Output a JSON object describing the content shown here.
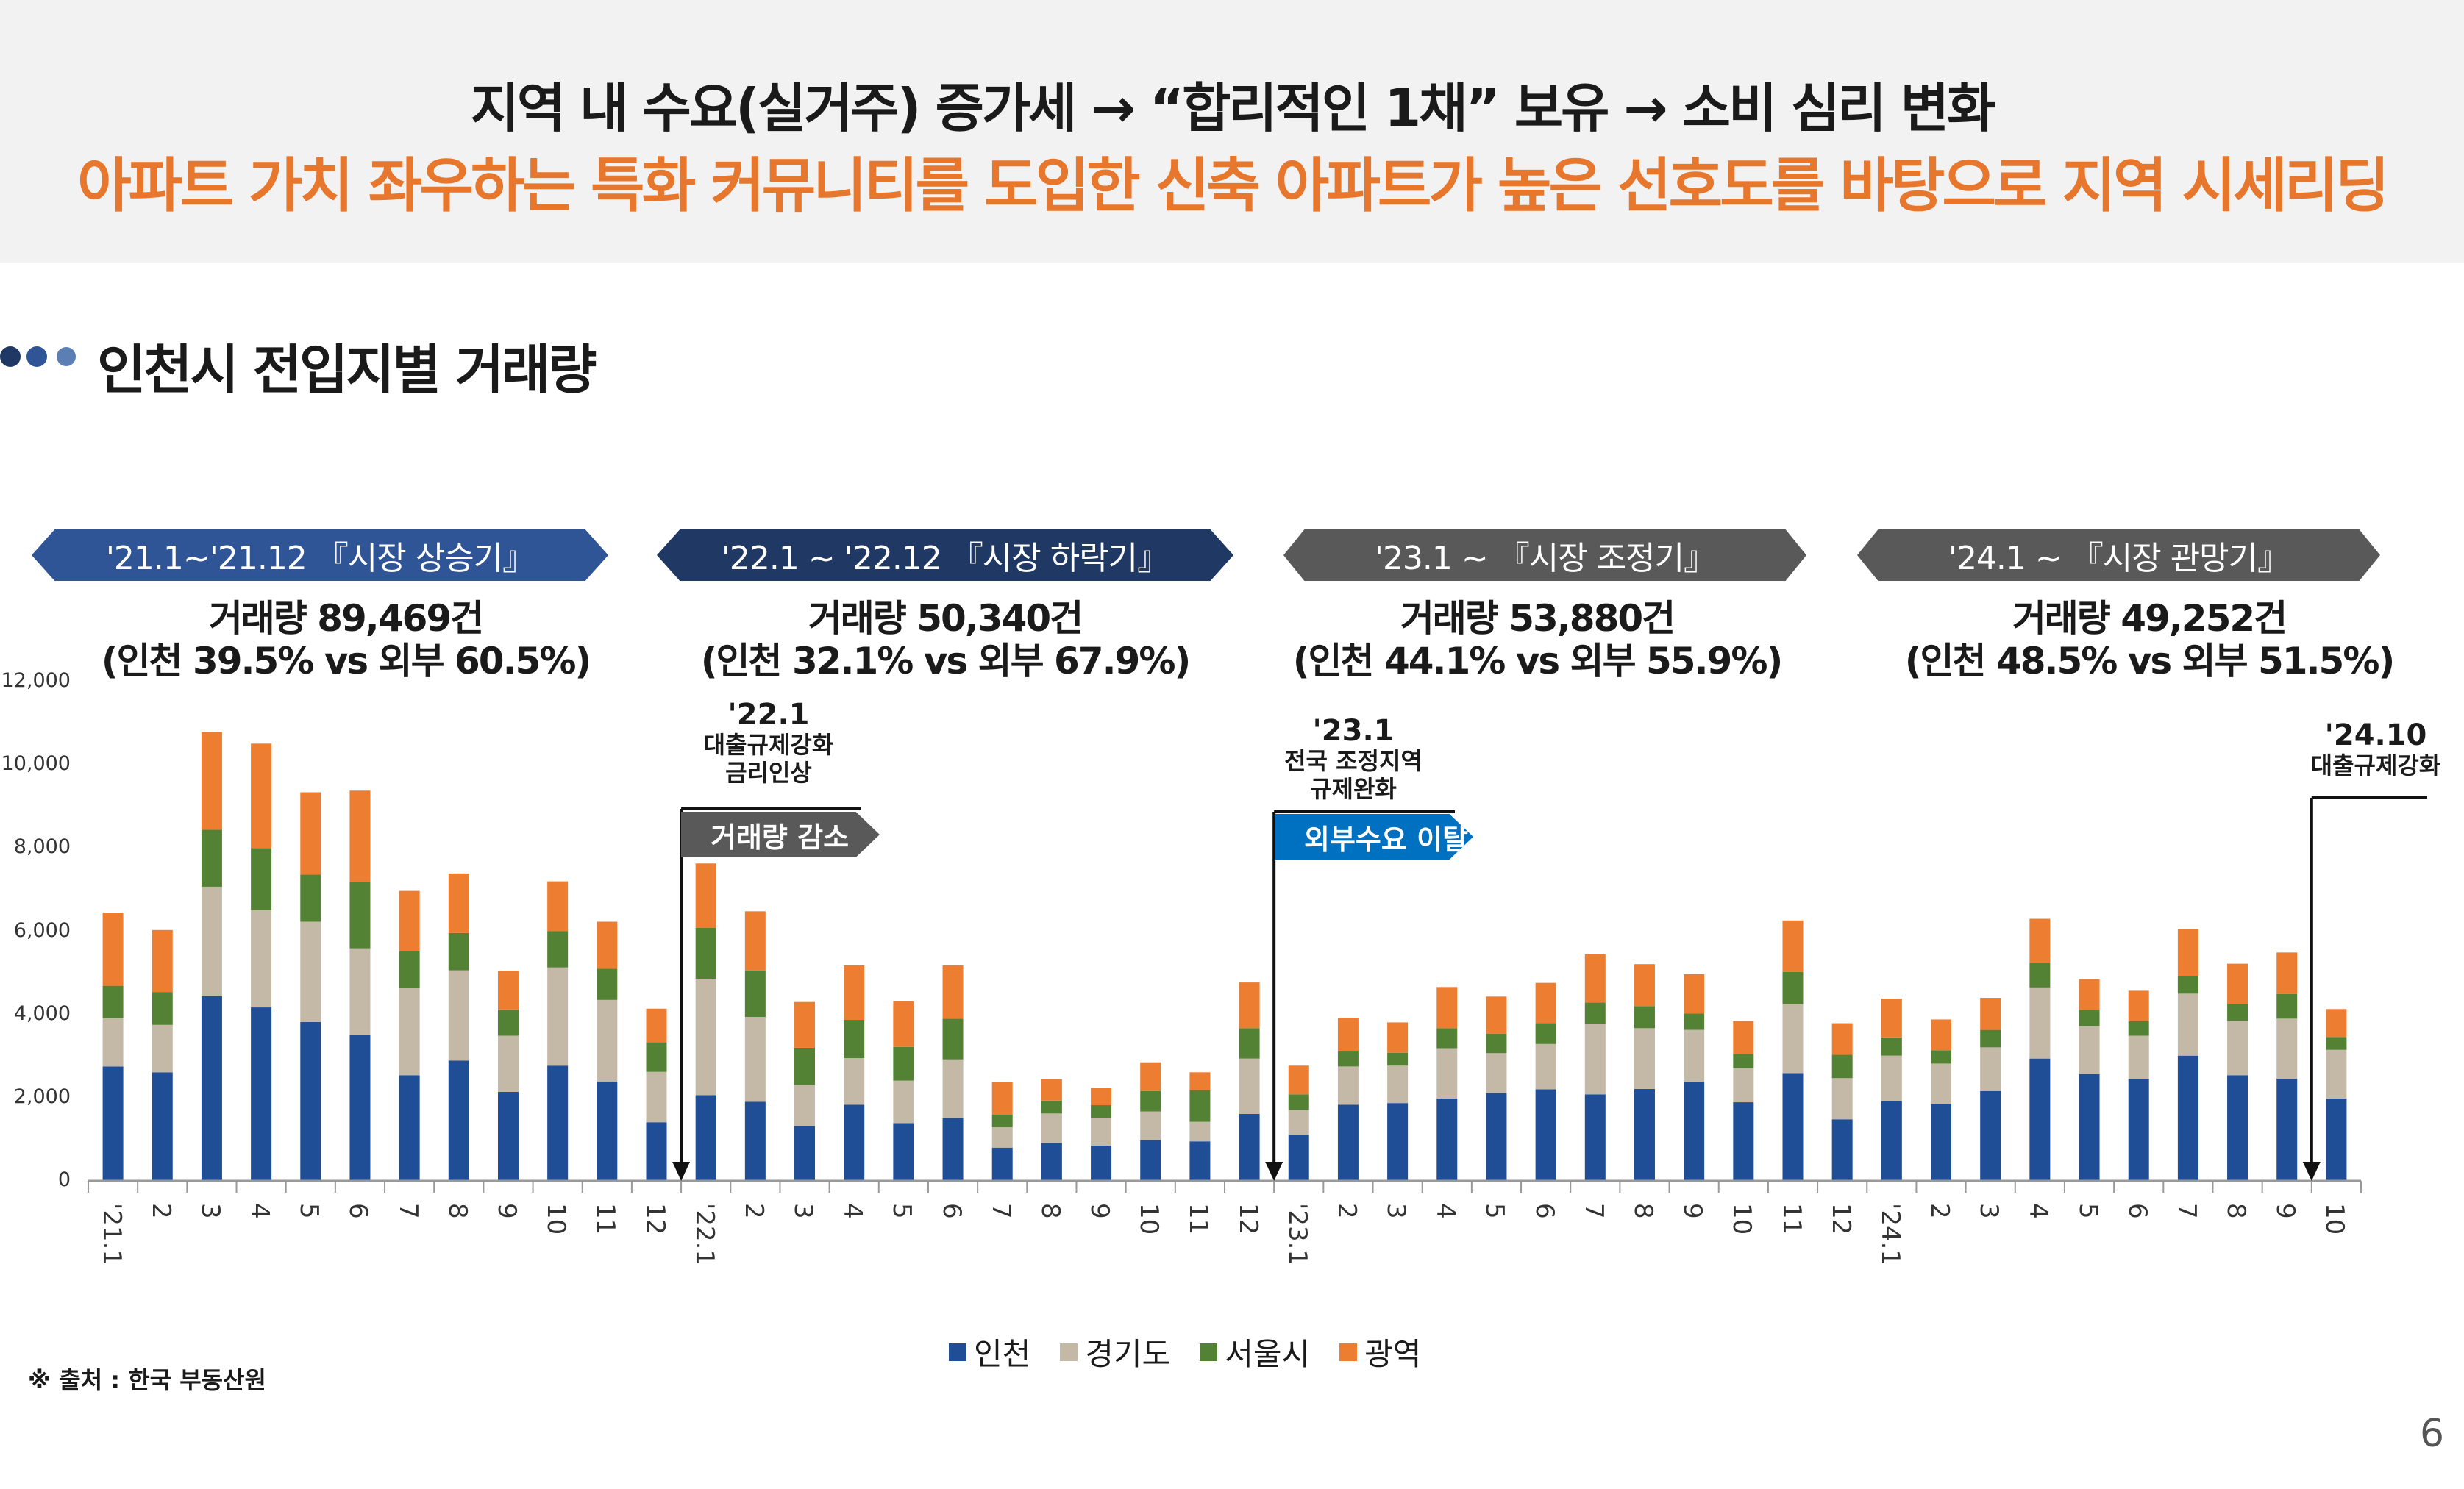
{
  "header": {
    "line1": "지역 내 수요(실거주) 증가세 →  “합리적인 1채” 보유 →  소비 심리 변화",
    "line2": "아파트 가치 좌우하는  특화 커뮤니티를 도입한 신축 아파트가 높은 선호도를 바탕으로 지역 시세리딩"
  },
  "section": {
    "title": "인천시 전입지별 거래량",
    "icon": "three-dots-bullet-icon"
  },
  "periods": [
    {
      "label": "'21.1~'21.12 『시장 상승기』",
      "volume": "거래량 89,469건",
      "share": "(인천 39.5% vs 외부 60.5%)",
      "color": "#2f5597"
    },
    {
      "label": "'22.1 ~ '22.12 『시장 하락기』",
      "volume": "거래량 50,340건",
      "share": "(인천 32.1% vs 외부 67.9%)",
      "color": "#1f3864"
    },
    {
      "label": "'23.1 ~ 『시장 조정기』",
      "volume": "거래량 53,880건",
      "share": "(인천 44.1% vs 외부 55.9%)",
      "color": "#595959"
    },
    {
      "label": "'24.1 ~ 『시장 관망기』",
      "volume": "거래량 49,252건",
      "share": "(인천 48.5% vs 외부 51.5%)",
      "color": "#595959"
    }
  ],
  "annotations": [
    {
      "date": "'22.1",
      "lines": [
        "대출규제강화",
        "금리인상"
      ],
      "tag": "거래량 감소",
      "tag_color": "#595959"
    },
    {
      "date": "'23.1",
      "lines": [
        "전국 조정지역",
        "규제완화"
      ],
      "tag": "외부수요 이탈",
      "tag_color": "#0070c0"
    },
    {
      "date": "'24.10",
      "lines": [
        "대출규제강화"
      ]
    }
  ],
  "chart_data": {
    "type": "bar",
    "stacked": true,
    "ylim": [
      0,
      12000
    ],
    "yticks": [
      "0",
      "2,000",
      "4,000",
      "6,000",
      "8,000",
      "10,000",
      "12,000"
    ],
    "grid": false,
    "legend_position": "bottom",
    "categories": [
      "'21.1",
      "2",
      "3",
      "4",
      "5",
      "6",
      "7",
      "8",
      "9",
      "10",
      "11",
      "12",
      "'22.1",
      "2",
      "3",
      "4",
      "5",
      "6",
      "7",
      "8",
      "9",
      "10",
      "11",
      "12",
      "'23.1",
      "2",
      "3",
      "4",
      "5",
      "6",
      "7",
      "8",
      "9",
      "10",
      "11",
      "12",
      "'24.1",
      "2",
      "3",
      "4",
      "5",
      "6",
      "7",
      "8",
      "9",
      "10"
    ],
    "series": [
      {
        "name": "인천",
        "color": "#1f4e96",
        "values": [
          2750,
          2610,
          4440,
          4170,
          3820,
          3500,
          2540,
          2890,
          2140,
          2770,
          2390,
          1410,
          2060,
          1900,
          1320,
          1830,
          1390,
          1510,
          800,
          910,
          850,
          980,
          950,
          1610,
          1110,
          1830,
          1870,
          1980,
          2110,
          2200,
          2080,
          2210,
          2380,
          1890,
          2590,
          1480,
          1920,
          1850,
          2160,
          2940,
          2570,
          2440,
          3010,
          2540,
          2460,
          1980
        ]
      },
      {
        "name": "경기도",
        "color": "#c4b9a7",
        "values": [
          1160,
          1140,
          2630,
          2340,
          2410,
          2090,
          2090,
          2170,
          1350,
          2360,
          1960,
          1210,
          2800,
          2040,
          990,
          1120,
          1020,
          1410,
          490,
          710,
          670,
          690,
          470,
          1330,
          600,
          920,
          900,
          1210,
          960,
          1090,
          1700,
          1460,
          1250,
          820,
          1660,
          990,
          1090,
          970,
          1050,
          1710,
          1150,
          1050,
          1490,
          1310,
          1440,
          1170
        ]
      },
      {
        "name": "서울시",
        "color": "#548235",
        "values": [
          780,
          790,
          1370,
          1490,
          1130,
          1590,
          890,
          900,
          630,
          870,
          750,
          710,
          1220,
          1120,
          890,
          920,
          810,
          980,
          300,
          310,
          300,
          490,
          760,
          730,
          370,
          360,
          310,
          480,
          470,
          500,
          510,
          530,
          390,
          340,
          770,
          560,
          440,
          320,
          420,
          590,
          390,
          350,
          430,
          400,
          590,
          310
        ]
      },
      {
        "name": "광역",
        "color": "#ed7d31",
        "values": [
          1760,
          1490,
          2350,
          2510,
          1980,
          2200,
          1450,
          1430,
          930,
          1200,
          1130,
          810,
          1550,
          1420,
          1100,
          1310,
          1100,
          1280,
          780,
          510,
          410,
          690,
          430,
          1100,
          690,
          810,
          730,
          990,
          890,
          970,
          1160,
          1010,
          950,
          790,
          1240,
          760,
          930,
          740,
          770,
          1060,
          740,
          730,
          1120,
          970,
          1000,
          670
        ]
      }
    ]
  },
  "source": "※ 출처 : 한국 부동산원",
  "page_number": "6"
}
